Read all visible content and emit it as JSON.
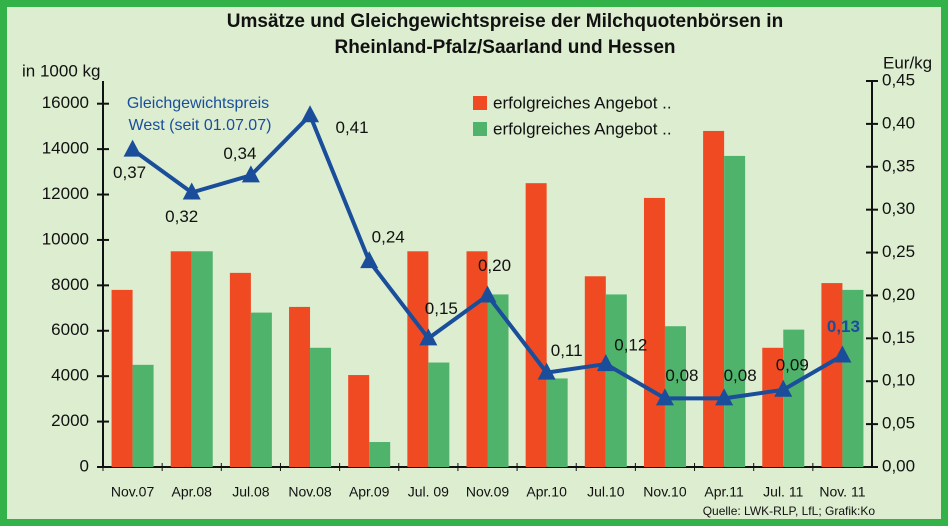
{
  "chart_data": {
    "type": "bar",
    "title": [
      "Umsätze und Gleichgewichtspreise  der Milchquotenbörsen in",
      "Rheinland-Pfalz/Saarland und Hessen"
    ],
    "y_axis_label": "in 1000 kg",
    "y2_axis_label": "Eur/kg",
    "categories": [
      "Nov.07",
      "Apr.08",
      "Jul.08",
      "Nov.08",
      "Apr.09",
      "Jul. 09",
      "Nov.09",
      "Apr.10",
      "Jul.10",
      "Nov.10",
      "Apr.11",
      "Jul. 11",
      "Nov. 11"
    ],
    "series": [
      {
        "name": "erfolgreiches Angebot ..",
        "type": "bar",
        "color": "#f04a23",
        "values": [
          7800,
          9500,
          8550,
          7050,
          4050,
          9500,
          9500,
          12500,
          8400,
          11850,
          14800,
          5250,
          8100
        ]
      },
      {
        "name": "erfolgreiches Angebot ..",
        "type": "bar",
        "color": "#4fb36b",
        "values": [
          4500,
          9500,
          6800,
          5250,
          1100,
          4600,
          7600,
          3900,
          7600,
          6200,
          13700,
          6050,
          7800
        ]
      },
      {
        "type": "line",
        "axis": "y2",
        "color": "#1a4e9a",
        "values": [
          0.37,
          0.32,
          0.34,
          0.41,
          0.24,
          0.15,
          0.2,
          0.11,
          0.12,
          0.08,
          0.08,
          0.09,
          0.13
        ],
        "value_labels": [
          "0,37",
          "0,32",
          "0,34",
          "0,41",
          "0,24",
          "0,15",
          "0,20",
          "0,11",
          "0,12",
          "0,08",
          "0,08",
          "0,09",
          "0,13"
        ]
      }
    ],
    "annotation": [
      "Gleichgewichtspreis",
      "West (seit 01.07.07)"
    ],
    "ylim": [
      0,
      17000
    ],
    "yticks": [
      0,
      2000,
      4000,
      6000,
      8000,
      10000,
      12000,
      14000,
      16000
    ],
    "y2lim": [
      0,
      0.45
    ],
    "y2ticks": [
      {
        "value": 0,
        "label": "0,00"
      },
      {
        "value": 0.05,
        "label": "0,05"
      },
      {
        "value": 0.1,
        "label": "0,10"
      },
      {
        "value": 0.15,
        "label": "0,15"
      },
      {
        "value": 0.2,
        "label": "0,20"
      },
      {
        "value": 0.25,
        "label": "0,25"
      },
      {
        "value": 0.3,
        "label": "0,30"
      },
      {
        "value": 0.35,
        "label": "0,35"
      },
      {
        "value": 0.4,
        "label": "0,40"
      },
      {
        "value": 0.45,
        "label": "0,45"
      }
    ],
    "source": "Quelle: LWK-RLP,  LfL; Grafik:Ko"
  }
}
